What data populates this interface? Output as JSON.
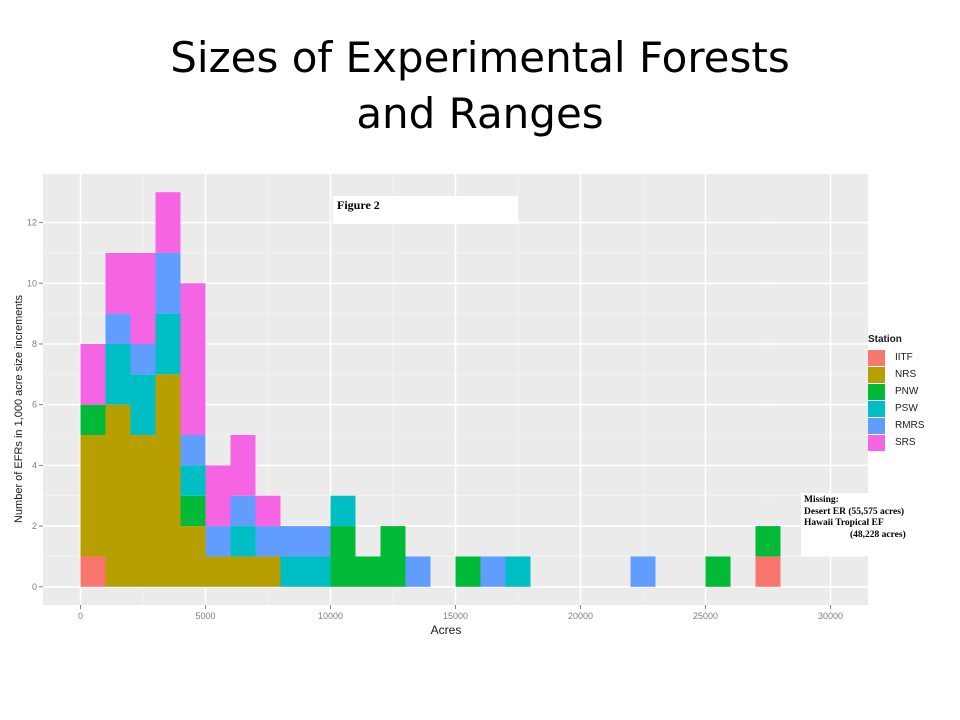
{
  "slide": {
    "title_line1": "Sizes of Experimental Forests",
    "title_line2": "and Ranges"
  },
  "annotations": {
    "figure": "Figure 2",
    "missing_title": "Missing:",
    "missing_line1": "Desert ER (55,575 acres)",
    "missing_line2": "Hawaii Tropical EF",
    "missing_line3": "(48,228 acres)"
  },
  "chart_data": {
    "type": "bar",
    "stacked": true,
    "bin_width": 1000,
    "xlabel": "Acres",
    "ylabel": "Number of EFRs in 1,000 acre size increments",
    "xlim": [
      -1500,
      31500
    ],
    "ylim": [
      -0.6,
      13.6
    ],
    "x_ticks": [
      0,
      5000,
      10000,
      15000,
      20000,
      25000,
      30000
    ],
    "y_ticks": [
      0,
      2,
      4,
      6,
      8,
      10,
      12
    ],
    "grid": true,
    "background": "#ebebeb",
    "legend_title": "Station",
    "legend_position": "right",
    "bin_starts": [
      0,
      1000,
      2000,
      3000,
      4000,
      5000,
      6000,
      7000,
      8000,
      9000,
      10000,
      11000,
      12000,
      13000,
      15000,
      16000,
      17000,
      22000,
      25000,
      27000
    ],
    "series": [
      {
        "name": "IITF",
        "color": "#f8766d",
        "values": [
          1,
          0,
          0,
          0,
          0,
          0,
          0,
          0,
          0,
          0,
          0,
          0,
          0,
          0,
          0,
          0,
          0,
          0,
          0,
          1
        ]
      },
      {
        "name": "NRS",
        "color": "#b79f00",
        "values": [
          4,
          6,
          5,
          7,
          2,
          1,
          1,
          1,
          0,
          0,
          0,
          0,
          0,
          0,
          0,
          0,
          0,
          0,
          0,
          0
        ]
      },
      {
        "name": "PNW",
        "color": "#00ba38",
        "values": [
          1,
          0,
          0,
          0,
          1,
          0,
          0,
          0,
          0,
          0,
          2,
          1,
          2,
          0,
          1,
          0,
          0,
          0,
          1,
          1
        ]
      },
      {
        "name": "PSW",
        "color": "#00bfc4",
        "values": [
          0,
          2,
          2,
          2,
          1,
          0,
          1,
          0,
          1,
          1,
          1,
          0,
          0,
          0,
          0,
          0,
          1,
          0,
          0,
          0
        ]
      },
      {
        "name": "RMRS",
        "color": "#619cff",
        "values": [
          0,
          1,
          1,
          2,
          1,
          1,
          1,
          1,
          1,
          1,
          0,
          0,
          0,
          1,
          0,
          1,
          0,
          1,
          0,
          0
        ]
      },
      {
        "name": "SRS",
        "color": "#f564e3",
        "values": [
          2,
          2,
          3,
          2,
          5,
          2,
          2,
          1,
          0,
          0,
          0,
          0,
          0,
          0,
          0,
          0,
          0,
          0,
          0,
          0
        ]
      }
    ]
  }
}
